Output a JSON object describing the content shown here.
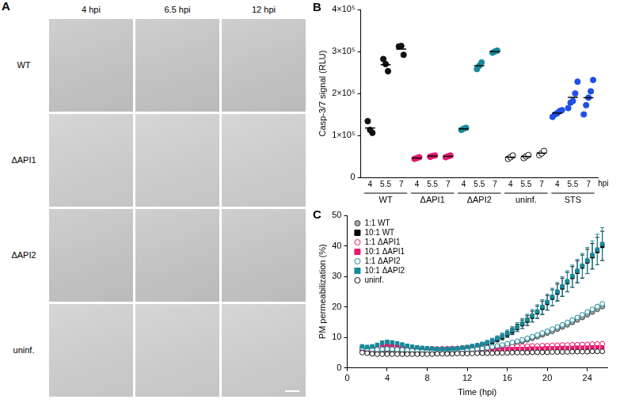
{
  "image_panel": {
    "panel": "A",
    "columns": [
      "4 hpi",
      "6.5 hpi",
      "12 hpi"
    ],
    "rows": [
      "WT",
      "ΔAPI1",
      "ΔAPI2",
      "uninf."
    ]
  },
  "chart_data": [
    {
      "panel": "B",
      "type": "dot",
      "ylabel": "Casp-3/7 signal (RLU)",
      "xlabel": "hpi",
      "categories": [
        "4",
        "5.5",
        "7",
        "4",
        "5.5",
        "7",
        "4",
        "5.5",
        "7",
        "4",
        "5.5",
        "7",
        "4",
        "5.5",
        "7"
      ],
      "ylim": [
        0,
        400000
      ],
      "yticks": [
        0,
        {
          "value": 100000,
          "label": "1×10⁵"
        },
        {
          "value": 200000,
          "label": "2×10⁵"
        },
        {
          "value": 300000,
          "label": "3×10⁵"
        },
        {
          "value": 400000,
          "label": "4×10⁵"
        }
      ],
      "grid": false,
      "series": [
        {
          "name": "WT",
          "color": "#111111",
          "marker": "circle",
          "values": [
            [
              134000,
              113000,
              106000
            ],
            [
              282000,
              270000,
              253000
            ],
            [
              312000,
              313000,
              292000
            ],
            null,
            null,
            null,
            null,
            null,
            null,
            null,
            null,
            null,
            null,
            null,
            null
          ],
          "means": [
            117667,
            268333,
            305667,
            null,
            null,
            null,
            null,
            null,
            null,
            null,
            null,
            null,
            null,
            null,
            null
          ]
        },
        {
          "name": "ΔAPI1",
          "color": "#e6196e",
          "marker": "circle",
          "values": [
            null,
            null,
            null,
            [
              44000,
              46000,
              48000
            ],
            [
              49000,
              51000,
              52000
            ],
            [
              48000,
              50000,
              52000
            ],
            null,
            null,
            null,
            null,
            null,
            null,
            null,
            null,
            null
          ],
          "means": [
            null,
            null,
            null,
            46000,
            50667,
            50000,
            null,
            null,
            null,
            null,
            null,
            null,
            null,
            null,
            null
          ]
        },
        {
          "name": "ΔAPI2",
          "color": "#16899a",
          "marker": "circle",
          "values": [
            null,
            null,
            null,
            null,
            null,
            null,
            [
              113000,
              116000,
              118000
            ],
            [
              258000,
              266000,
              274000
            ],
            [
              297000,
              300000,
              302000
            ],
            null,
            null,
            null,
            null,
            null,
            null
          ],
          "means": [
            null,
            null,
            null,
            null,
            null,
            null,
            115667,
            266000,
            299667,
            null,
            null,
            null,
            null,
            null,
            null
          ]
        },
        {
          "name": "uninf.",
          "color": "#111111",
          "marker": "open_circle",
          "values": [
            null,
            null,
            null,
            null,
            null,
            null,
            null,
            null,
            null,
            [
              44000,
              48000,
              52000
            ],
            [
              46000,
              50000,
              53000
            ],
            [
              53000,
              57000,
              63000
            ],
            null,
            null,
            null
          ],
          "means": [
            null,
            null,
            null,
            null,
            null,
            null,
            null,
            null,
            null,
            48000,
            49667,
            57667,
            null,
            null,
            null
          ]
        },
        {
          "name": "STS",
          "color": "#1f4fe6",
          "marker": "circle",
          "values": [
            null,
            null,
            null,
            null,
            null,
            null,
            null,
            null,
            null,
            null,
            null,
            null,
            [
              144000,
              150000,
              153000,
              158000,
              160000
            ],
            [
              165000,
              178000,
              182000,
              200000,
              228000
            ],
            [
              150000,
              172000,
              190000,
              205000,
              232000
            ]
          ],
          "means": [
            null,
            null,
            null,
            null,
            null,
            null,
            null,
            null,
            null,
            null,
            null,
            null,
            153000,
            190600,
            189800
          ]
        }
      ]
    },
    {
      "panel": "C",
      "type": "scatter",
      "xlabel": "Time (hpi)",
      "ylabel": "PM permeabilization (%)",
      "x": [
        1.5,
        2,
        2.5,
        3,
        3.5,
        4,
        4.5,
        5,
        5.5,
        6,
        6.5,
        7,
        7.5,
        8,
        8.5,
        9,
        9.5,
        10,
        10.5,
        11,
        11.5,
        12,
        12.5,
        13,
        13.5,
        14,
        14.5,
        15,
        15.5,
        16,
        16.5,
        17,
        17.5,
        18,
        18.5,
        19,
        19.5,
        20,
        20.5,
        21,
        21.5,
        22,
        22.5,
        23,
        23.5,
        24,
        24.5,
        25,
        25.5
      ],
      "xlim": [
        0,
        26
      ],
      "xticks": [
        0,
        4,
        8,
        12,
        16,
        20,
        24
      ],
      "ylim": [
        0,
        50
      ],
      "yticks": [
        0,
        10,
        20,
        30,
        40,
        50
      ],
      "grid": false,
      "legend": "upper left",
      "series": [
        {
          "name": "1:1 WT",
          "color": "#a6a6a6",
          "marker": "circle",
          "values": [
            6.0,
            5.8,
            5.6,
            5.5,
            5.6,
            5.7,
            5.7,
            5.6,
            5.5,
            5.4,
            5.3,
            5.3,
            5.3,
            5.3,
            5.3,
            5.4,
            5.4,
            5.5,
            5.5,
            5.6,
            5.7,
            5.8,
            5.9,
            6.0,
            6.2,
            6.4,
            6.6,
            6.9,
            7.2,
            7.5,
            7.9,
            8.3,
            8.7,
            9.2,
            9.7,
            10.2,
            10.8,
            11.4,
            12.0,
            12.7,
            13.4,
            14.1,
            14.9,
            15.7,
            16.5,
            17.4,
            18.3,
            19.2,
            20.1
          ]
        },
        {
          "name": "10:1 WT",
          "color": "#000000",
          "marker": "square",
          "values": [
            6.5,
            6.2,
            6.0,
            6.3,
            6.8,
            7.0,
            7.0,
            6.8,
            6.5,
            6.3,
            6.2,
            6.0,
            6.0,
            5.9,
            5.8,
            5.8,
            5.8,
            5.9,
            6.0,
            6.1,
            6.3,
            6.5,
            6.8,
            7.1,
            7.5,
            8.0,
            8.6,
            9.3,
            10.1,
            11.0,
            12.0,
            13.1,
            14.3,
            15.5,
            16.8,
            18.2,
            19.7,
            21.3,
            23.0,
            24.7,
            26.4,
            28.1,
            29.8,
            31.5,
            33.2,
            34.9,
            36.6,
            38.3,
            40.0
          ],
          "errors": [
            0.5,
            0.5,
            0.5,
            0.5,
            0.5,
            0.5,
            0.5,
            0.5,
            0.5,
            0.5,
            0.5,
            0.5,
            0.5,
            0.5,
            0.5,
            0.5,
            0.5,
            0.5,
            0.5,
            0.5,
            0.5,
            0.5,
            0.5,
            0.5,
            0.5,
            0.6,
            0.7,
            0.8,
            0.9,
            1.0,
            1.1,
            1.2,
            1.4,
            1.6,
            1.8,
            2.0,
            2.2,
            2.4,
            2.6,
            2.8,
            3.0,
            3.2,
            3.4,
            3.6,
            3.8,
            4.0,
            4.2,
            4.5,
            4.8
          ]
        },
        {
          "name": "1:1 ΔAPI1",
          "color": "#e6196e",
          "marker": "open_circle",
          "values": [
            6.0,
            5.8,
            5.7,
            5.8,
            6.0,
            6.1,
            6.1,
            6.0,
            6.0,
            6.0,
            6.0,
            6.0,
            6.1,
            6.1,
            6.2,
            6.2,
            6.3,
            6.3,
            6.4,
            6.4,
            6.5,
            6.5,
            6.6,
            6.6,
            6.7,
            6.7,
            6.8,
            6.8,
            6.9,
            6.9,
            7.0,
            7.0,
            7.1,
            7.1,
            7.2,
            7.2,
            7.3,
            7.3,
            7.4,
            7.4,
            7.5,
            7.5,
            7.6,
            7.6,
            7.7,
            7.7,
            7.8,
            7.8,
            7.9
          ]
        },
        {
          "name": "10:1 ΔAPI1",
          "color": "#e6196e",
          "marker": "square",
          "values": [
            6.3,
            6.0,
            6.2,
            6.6,
            7.0,
            7.2,
            7.1,
            6.9,
            6.6,
            6.4,
            6.2,
            6.0,
            5.9,
            5.8,
            5.7,
            5.7,
            5.7,
            5.7,
            5.7,
            5.8,
            5.8,
            5.8,
            5.9,
            5.9,
            5.9,
            6.0,
            6.0,
            6.0,
            6.1,
            6.1,
            6.1,
            6.2,
            6.2,
            6.2,
            6.3,
            6.3,
            6.3,
            6.4,
            6.4,
            6.4,
            6.5,
            6.5,
            6.5,
            6.6,
            6.6,
            6.6,
            6.7,
            6.7,
            6.7
          ]
        },
        {
          "name": "1:1 ΔAPI2",
          "color": "#16899a",
          "marker": "open_circle",
          "values": [
            6.5,
            6.2,
            6.0,
            6.0,
            6.1,
            6.2,
            6.1,
            6.0,
            5.9,
            5.8,
            5.7,
            5.6,
            5.6,
            5.5,
            5.5,
            5.5,
            5.5,
            5.6,
            5.6,
            5.7,
            5.8,
            5.9,
            6.0,
            6.2,
            6.4,
            6.6,
            6.9,
            7.2,
            7.5,
            7.9,
            8.3,
            8.7,
            9.2,
            9.7,
            10.2,
            10.8,
            11.4,
            12.0,
            12.7,
            13.4,
            14.1,
            14.9,
            15.7,
            16.5,
            17.4,
            18.3,
            19.2,
            20.1,
            21.0
          ]
        },
        {
          "name": "10:1 ΔAPI2",
          "color": "#16899a",
          "marker": "square",
          "values": [
            7.0,
            6.8,
            7.0,
            7.5,
            8.2,
            8.5,
            8.3,
            8.0,
            7.6,
            7.2,
            6.9,
            6.7,
            6.5,
            6.4,
            6.3,
            6.2,
            6.2,
            6.2,
            6.3,
            6.4,
            6.6,
            6.8,
            7.1,
            7.4,
            7.8,
            8.3,
            8.9,
            9.6,
            10.4,
            11.3,
            12.3,
            13.4,
            14.6,
            15.8,
            17.1,
            18.5,
            20.0,
            21.6,
            23.3,
            25.0,
            26.7,
            28.4,
            30.1,
            31.8,
            33.5,
            35.2,
            37.0,
            38.8,
            40.6
          ],
          "errors": [
            0.6,
            0.6,
            0.6,
            0.6,
            0.6,
            0.6,
            0.6,
            0.6,
            0.6,
            0.6,
            0.6,
            0.6,
            0.6,
            0.6,
            0.6,
            0.6,
            0.6,
            0.6,
            0.6,
            0.6,
            0.6,
            0.6,
            0.6,
            0.6,
            0.6,
            0.7,
            0.8,
            0.9,
            1.0,
            1.1,
            1.2,
            1.4,
            1.6,
            1.8,
            2.0,
            2.2,
            2.4,
            2.6,
            2.8,
            3.0,
            3.2,
            3.4,
            3.6,
            3.8,
            4.0,
            4.3,
            4.6,
            5.0,
            5.4
          ]
        },
        {
          "name": "uninf.",
          "color": "#111111",
          "marker": "open_circle",
          "values": [
            5.0,
            4.8,
            4.6,
            4.5,
            4.5,
            4.5,
            4.5,
            4.5,
            4.5,
            4.5,
            4.5,
            4.5,
            4.5,
            4.5,
            4.5,
            4.6,
            4.6,
            4.6,
            4.6,
            4.7,
            4.7,
            4.7,
            4.7,
            4.8,
            4.8,
            4.8,
            4.8,
            4.9,
            4.9,
            4.9,
            5.0,
            5.0,
            5.0,
            5.0,
            5.1,
            5.1,
            5.1,
            5.1,
            5.2,
            5.2,
            5.2,
            5.2,
            5.3,
            5.3,
            5.3,
            5.3,
            5.4,
            5.4,
            5.4
          ]
        }
      ]
    }
  ]
}
